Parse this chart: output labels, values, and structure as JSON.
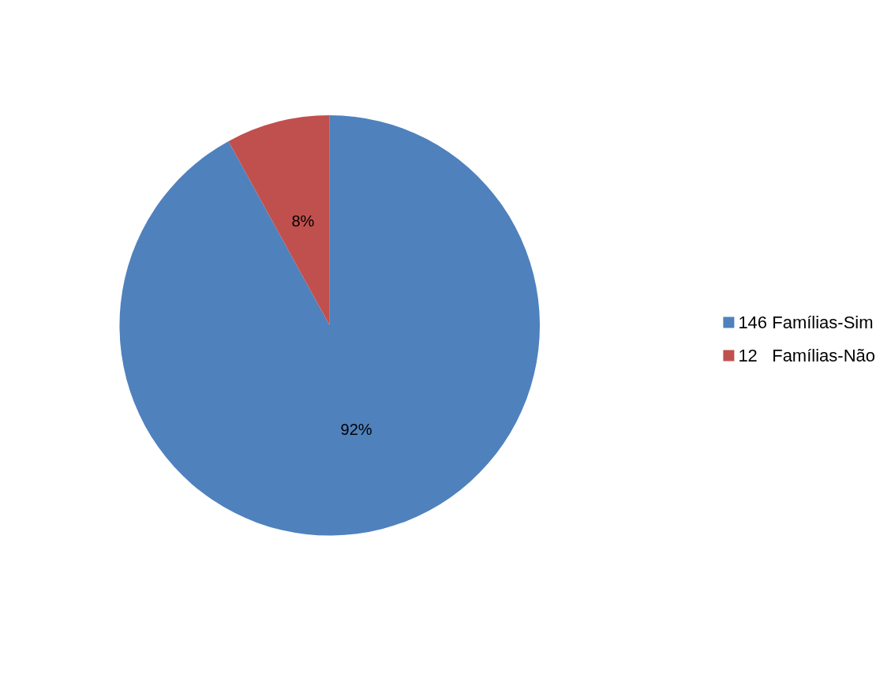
{
  "chart_data": {
    "type": "pie",
    "categories": [
      "146 Famílias-Sim",
      "12   Famílias-Não"
    ],
    "values": [
      92,
      8
    ],
    "colors": [
      "#4f81bd",
      "#c0504d"
    ],
    "value_labels": [
      "92%",
      "8%"
    ],
    "legend": "right"
  }
}
